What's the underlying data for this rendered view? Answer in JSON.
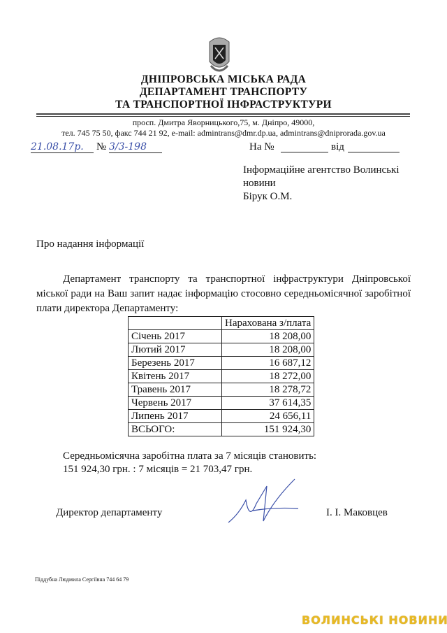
{
  "header": {
    "org": "ДНІПРОВСЬКА  МІСЬКА  РАДА",
    "dept1": "ДЕПАРТАМЕНТ ТРАНСПОРТУ",
    "dept2": "ТА ТРАНСПОРТНОЇ ІНФРАСТРУКТУРИ",
    "address": "просп. Дмитра Яворницького,75,  м. Дніпро,  49000,",
    "contacts": "тел. 745 75 50, факс 744 21 92, e-mail: admintrans@dmr.dp.ua, admintrans@dniprorada.gov.ua",
    "emblem_icon": "city-coat-of-arms-icon"
  },
  "ref": {
    "date": "21.08.17р.",
    "no_label": "№",
    "no": "3/3-198",
    "reply_label": "На №",
    "reply_from": "від"
  },
  "recipient": {
    "line1": "Інформаційне агентство Волинські",
    "line2": "новини",
    "line3": "Бірук О.М."
  },
  "subject": "Про надання інформації",
  "body": {
    "line1": "Департамент транспорту та транспортної інфраструктури Дніпровської міської",
    "line2": "ради на Ваш запит надає інформацію стосовно середньомісячної заробітної плати",
    "line3": "директора Департаменту:"
  },
  "table": {
    "header": "Нарахована з/плата",
    "rows": [
      {
        "month": "Січень 2017",
        "value": "18 208,00"
      },
      {
        "month": "Лютий 2017",
        "value": "18 208,00"
      },
      {
        "month": "Березень 2017",
        "value": "16 687,12"
      },
      {
        "month": "Квітень 2017",
        "value": "18 272,00"
      },
      {
        "month": "Травень 2017",
        "value": "18 278,72"
      },
      {
        "month": "Червень 2017",
        "value": "37 614,35"
      },
      {
        "month": "Липень 2017",
        "value": "24 656,11"
      }
    ],
    "total_label": "ВСЬОГО:",
    "total_value": "151 924,30"
  },
  "summary": {
    "line1": "Середньомісячна заробітна плата за 7 місяців становить:",
    "line2": "151 924,30 грн. : 7 місяців = 21 703,47 грн."
  },
  "signature": {
    "title": "Директор департаменту",
    "name": "І. І. Маковцев"
  },
  "footer": "Піддубна Людмила Сергіївна 744 64 79",
  "watermark": "ВОЛИНСЬКІ НОВИНИ"
}
